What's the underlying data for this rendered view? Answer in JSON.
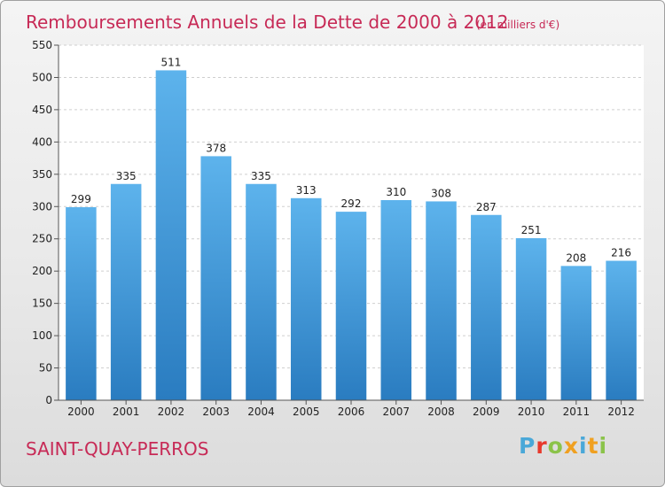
{
  "chart_data": {
    "type": "bar",
    "title": "Remboursements Annuels de la Dette de 2000 à 2012",
    "unit": "(en milliers d'€)",
    "categories": [
      "2000",
      "2001",
      "2002",
      "2003",
      "2004",
      "2005",
      "2006",
      "2007",
      "2008",
      "2009",
      "2010",
      "2011",
      "2012"
    ],
    "values": [
      299,
      335,
      511,
      378,
      335,
      313,
      292,
      310,
      308,
      287,
      251,
      208,
      216
    ],
    "ylim": [
      0,
      550
    ],
    "yticks": [
      0,
      50,
      100,
      150,
      200,
      250,
      300,
      350,
      400,
      450,
      500,
      550
    ],
    "grid": true,
    "bar_color": "#3d95d8"
  },
  "footer": {
    "town": "SAINT-QUAY-PERROS",
    "logo_letters": [
      "P",
      "r",
      "o",
      "x",
      "i",
      "t",
      "i"
    ],
    "logo_colors": [
      "#4aa8d8",
      "#e8392c",
      "#8bc34a",
      "#f0a020",
      "#4aa8d8",
      "#f0a020",
      "#8bc34a"
    ]
  }
}
